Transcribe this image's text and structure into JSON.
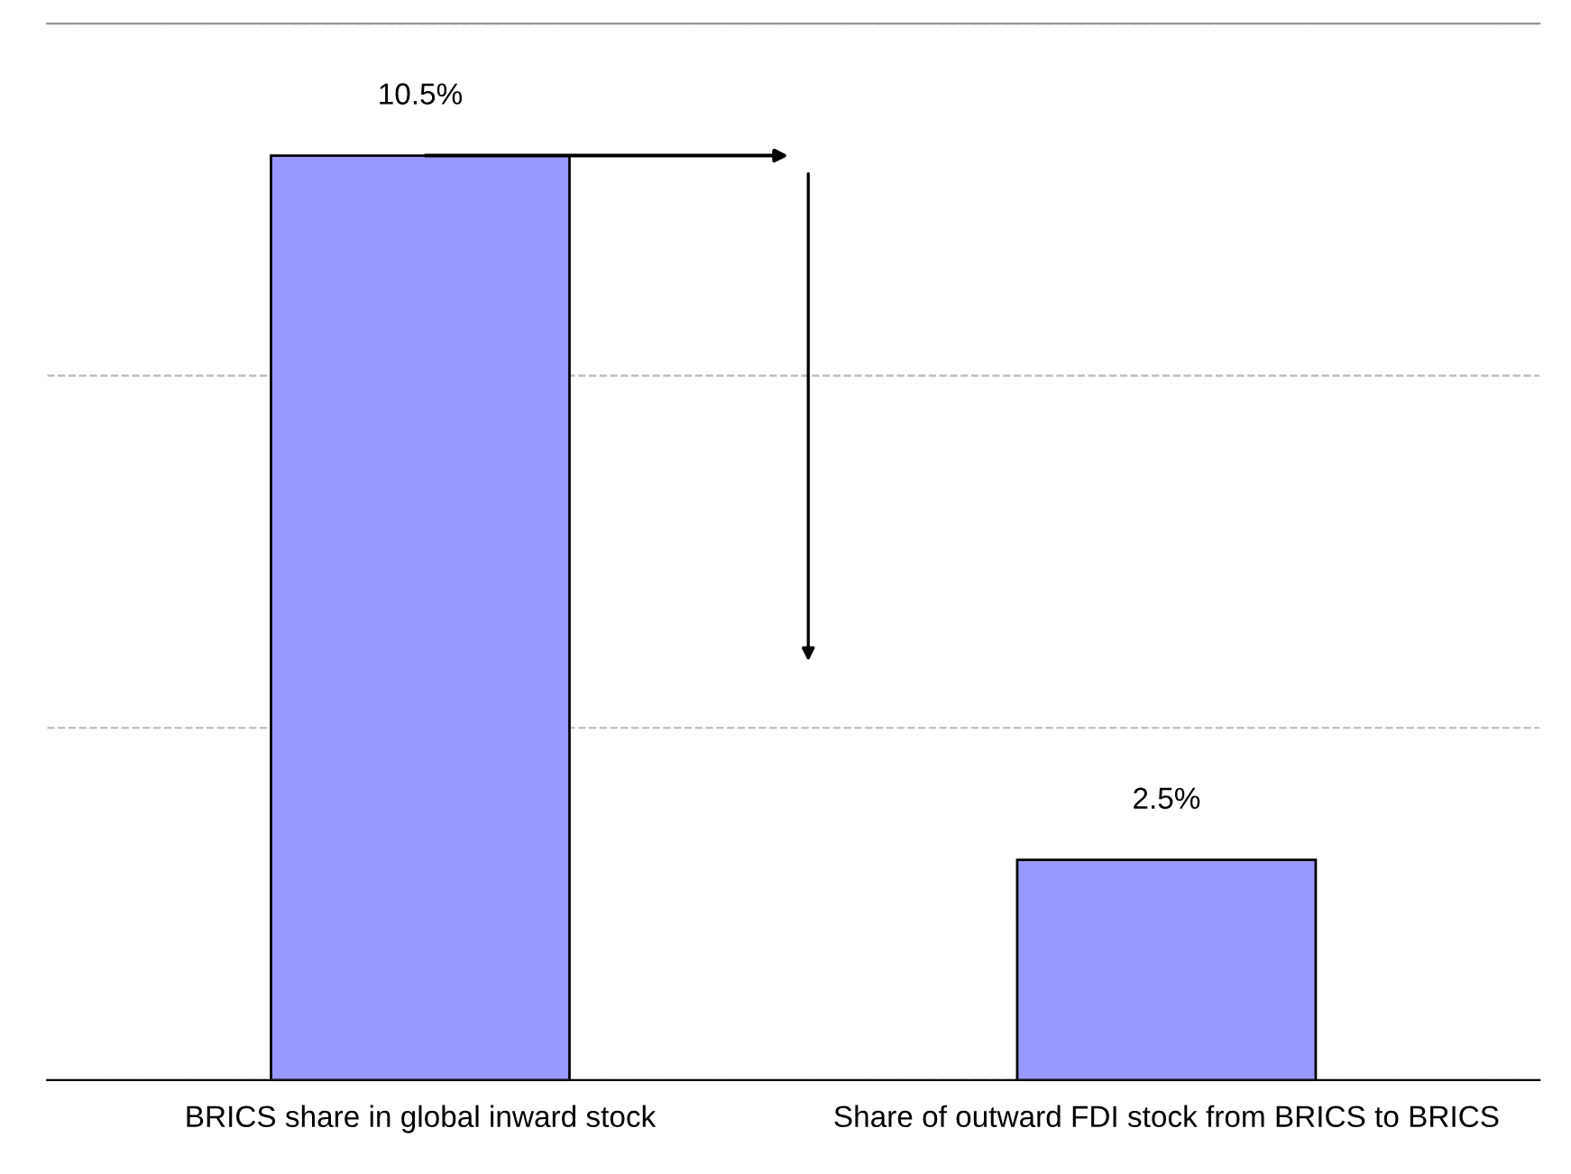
{
  "chart_data": {
    "type": "bar",
    "categories": [
      "BRICS share in global inward stock",
      "Share of outward FDI stock from BRICS to BRICS"
    ],
    "values": [
      10.5,
      2.5
    ],
    "value_labels": [
      "10.5%",
      "2.5%"
    ],
    "color": "#9999ff",
    "ylim": [
      0,
      12
    ],
    "yticks": [
      {
        "value": 0,
        "label": null
      },
      {
        "value": 4,
        "label": null
      },
      {
        "value": 8,
        "label": null
      },
      {
        "value": 12,
        "label": null
      }
    ],
    "grid": "y",
    "tick_labels": "x",
    "legend": false
  }
}
